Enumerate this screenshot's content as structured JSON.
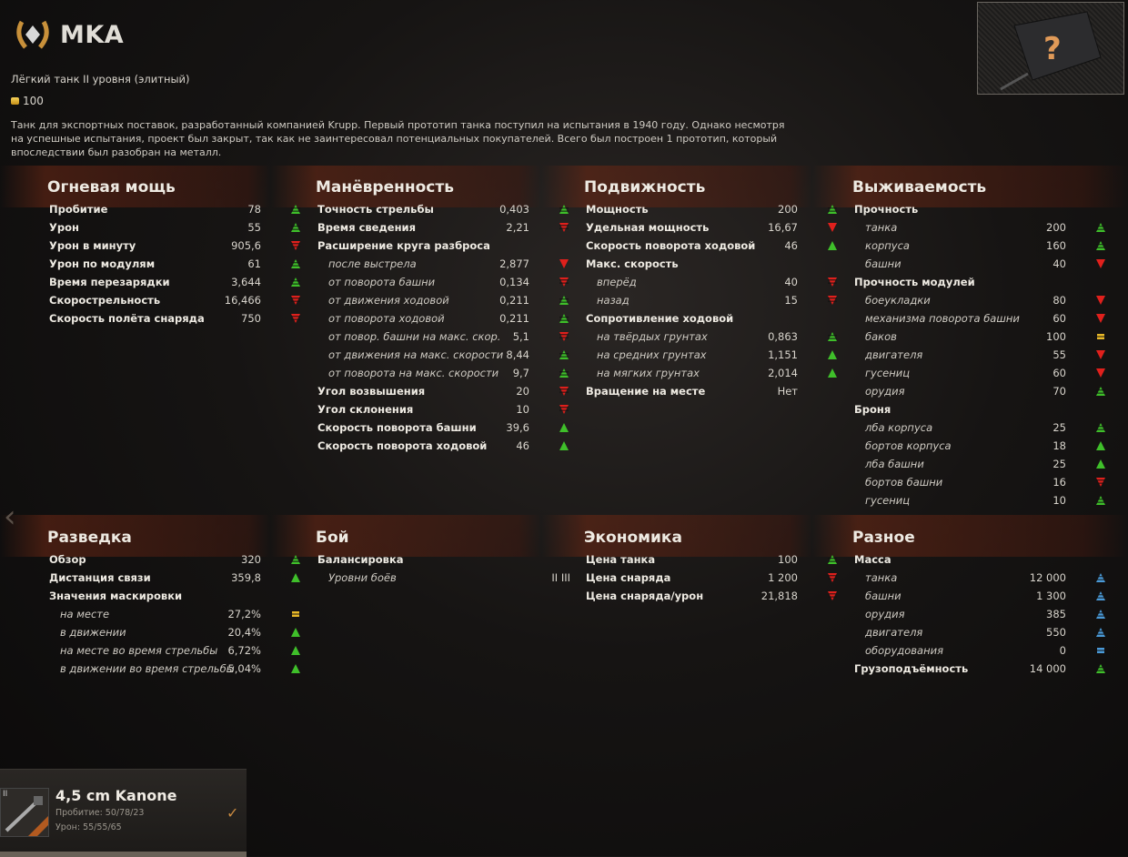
{
  "header": {
    "title": "MKA",
    "subtitle": "Лёгкий танк II уровня (элитный)",
    "price": "100",
    "description": "Танк для экспортных поставок, разработанный компанией Krupp. Первый прототип танка поступил на испытания в 1940 году. Однако несмотря на успешные испытания, проект был закрыт, так как не заинтересовал потенциальных покупателей. Всего был построен 1 прототип, который впоследствии был разобран на металл.",
    "preview_icon": "unknown-tank-question-icon",
    "elite_icon": "elite-laurel-icon"
  },
  "colors": {
    "up": "#3fbf2a",
    "down": "#e0201c",
    "equal": "#e8b828",
    "blue": "#4a9ad8"
  },
  "sections": [
    {
      "title": "Огневая мощь",
      "rows": [
        {
          "label": "Пробитие",
          "value": "78",
          "icon": "su"
        },
        {
          "label": "Урон",
          "value": "55",
          "icon": "su"
        },
        {
          "label": "Урон в минуту",
          "value": "905,6",
          "icon": "sd"
        },
        {
          "label": "Урон по модулям",
          "value": "61",
          "icon": "su"
        },
        {
          "label": "Время перезарядки",
          "value": "3,644",
          "icon": "su"
        },
        {
          "label": "Скорострельность",
          "value": "16,466",
          "icon": "sd"
        },
        {
          "label": "Скорость полёта снаряда",
          "value": "750",
          "icon": "sd"
        }
      ]
    },
    {
      "title": "Манёвренность",
      "rows": [
        {
          "label": "Точность стрельбы",
          "value": "0,403",
          "icon": "su"
        },
        {
          "label": "Время сведения",
          "value": "2,21",
          "icon": "sd"
        },
        {
          "label": "Расширение круга разброса",
          "type": "hdr"
        },
        {
          "label": "после выстрела",
          "value": "2,877",
          "icon": "d",
          "type": "sub"
        },
        {
          "label": "от поворота башни",
          "value": "0,134",
          "icon": "sd",
          "type": "sub"
        },
        {
          "label": "от движения ходовой",
          "value": "0,211",
          "icon": "su",
          "type": "sub"
        },
        {
          "label": "от поворота ходовой",
          "value": "0,211",
          "icon": "su",
          "type": "sub"
        },
        {
          "label": "от повор. башни на макс. скор.",
          "value": "5,1",
          "icon": "sd",
          "type": "sub"
        },
        {
          "label": "от движения на макс. скорости",
          "value": "8,44",
          "icon": "su",
          "type": "sub"
        },
        {
          "label": "от поворота на макс. скорости",
          "value": "9,7",
          "icon": "su",
          "type": "sub"
        },
        {
          "label": "Угол возвышения",
          "value": "20",
          "icon": "sd"
        },
        {
          "label": "Угол склонения",
          "value": "10",
          "icon": "sd"
        },
        {
          "label": "Скорость поворота башни",
          "value": "39,6",
          "icon": "u"
        },
        {
          "label": "Скорость поворота ходовой",
          "value": "46",
          "icon": "u"
        }
      ]
    },
    {
      "title": "Подвижность",
      "rows": [
        {
          "label": "Мощность",
          "value": "200",
          "icon": "su"
        },
        {
          "label": "Удельная мощность",
          "value": "16,67",
          "icon": "d"
        },
        {
          "label": "Скорость поворота ходовой",
          "value": "46",
          "icon": "u"
        },
        {
          "label": "Макс. скорость",
          "type": "hdr"
        },
        {
          "label": "вперёд",
          "value": "40",
          "icon": "sd",
          "type": "sub"
        },
        {
          "label": "назад",
          "value": "15",
          "icon": "sd",
          "type": "sub"
        },
        {
          "label": "Сопротивление ходовой",
          "type": "hdr"
        },
        {
          "label": "на твёрдых грунтах",
          "value": "0,863",
          "icon": "su",
          "type": "sub"
        },
        {
          "label": "на средних грунтах",
          "value": "1,151",
          "icon": "u",
          "type": "sub"
        },
        {
          "label": "на мягких грунтах",
          "value": "2,014",
          "icon": "u",
          "type": "sub"
        },
        {
          "label": "Вращение на месте",
          "value": "Нет"
        }
      ]
    },
    {
      "title": "Выживаемость",
      "rows": [
        {
          "label": "Прочность",
          "type": "hdr"
        },
        {
          "label": "танка",
          "value": "200",
          "icon": "su",
          "type": "sub"
        },
        {
          "label": "корпуса",
          "value": "160",
          "icon": "su",
          "type": "sub"
        },
        {
          "label": "башни",
          "value": "40",
          "icon": "d",
          "type": "sub"
        },
        {
          "label": "Прочность модулей",
          "type": "hdr"
        },
        {
          "label": "боеукладки",
          "value": "80",
          "icon": "d",
          "type": "sub"
        },
        {
          "label": "механизма поворота башни",
          "value": "60",
          "icon": "d",
          "type": "sub"
        },
        {
          "label": "баков",
          "value": "100",
          "icon": "eq",
          "type": "sub"
        },
        {
          "label": "двигателя",
          "value": "55",
          "icon": "d",
          "type": "sub"
        },
        {
          "label": "гусениц",
          "value": "60",
          "icon": "d",
          "type": "sub"
        },
        {
          "label": "орудия",
          "value": "70",
          "icon": "su",
          "type": "sub"
        },
        {
          "label": "Броня",
          "type": "hdr"
        },
        {
          "label": "лба корпуса",
          "value": "25",
          "icon": "su",
          "type": "sub"
        },
        {
          "label": "бортов корпуса",
          "value": "18",
          "icon": "u",
          "type": "sub"
        },
        {
          "label": "лба башни",
          "value": "25",
          "icon": "u",
          "type": "sub"
        },
        {
          "label": "бортов башни",
          "value": "16",
          "icon": "sd",
          "type": "sub"
        },
        {
          "label": "гусениц",
          "value": "10",
          "icon": "su",
          "type": "sub"
        }
      ]
    },
    {
      "title": "Разведка",
      "rows": [
        {
          "label": "Обзор",
          "value": "320",
          "icon": "su"
        },
        {
          "label": "Дистанция связи",
          "value": "359,8",
          "icon": "u"
        },
        {
          "label": "Значения маскировки",
          "type": "hdr"
        },
        {
          "label": "на месте",
          "value": "27,2%",
          "icon": "eq",
          "type": "sub"
        },
        {
          "label": "в движении",
          "value": "20,4%",
          "icon": "u",
          "type": "sub"
        },
        {
          "label": "на месте во время стрельбы",
          "value": "6,72%",
          "icon": "u",
          "type": "sub"
        },
        {
          "label": "в движении во время стрельбы",
          "value": "5,04%",
          "icon": "u",
          "type": "sub"
        }
      ]
    },
    {
      "title": "Бой",
      "rows": [
        {
          "label": "Балансировка",
          "type": "hdr"
        },
        {
          "label": "Уровни боёв",
          "value": "II III",
          "type": "sub",
          "wide": true
        }
      ]
    },
    {
      "title": "Экономика",
      "rows": [
        {
          "label": "Цена танка",
          "value": "100",
          "icon": "su"
        },
        {
          "label": "Цена снаряда",
          "value": "1 200",
          "icon": "sd"
        },
        {
          "label": "Цена снаряда/урон",
          "value": "21,818",
          "icon": "sd"
        }
      ]
    },
    {
      "title": "Разное",
      "rows": [
        {
          "label": "Масса",
          "type": "hdr"
        },
        {
          "label": "танка",
          "value": "12 000",
          "icon": "bu",
          "type": "sub"
        },
        {
          "label": "башни",
          "value": "1 300",
          "icon": "bu",
          "type": "sub"
        },
        {
          "label": "орудия",
          "value": "385",
          "icon": "bu",
          "type": "sub"
        },
        {
          "label": "двигателя",
          "value": "550",
          "icon": "bu",
          "type": "sub"
        },
        {
          "label": "оборудования",
          "value": "0",
          "icon": "beq",
          "type": "sub"
        },
        {
          "label": "Грузоподъёмность",
          "value": "14 000",
          "icon": "su"
        }
      ]
    }
  ],
  "module_card": {
    "tier": "II",
    "name": "4,5 cm Kanone",
    "penetration": "Пробитие: 50/78/23",
    "damage": "Урон: 55/55/65",
    "icon": "gun-icon",
    "check": "✓"
  }
}
